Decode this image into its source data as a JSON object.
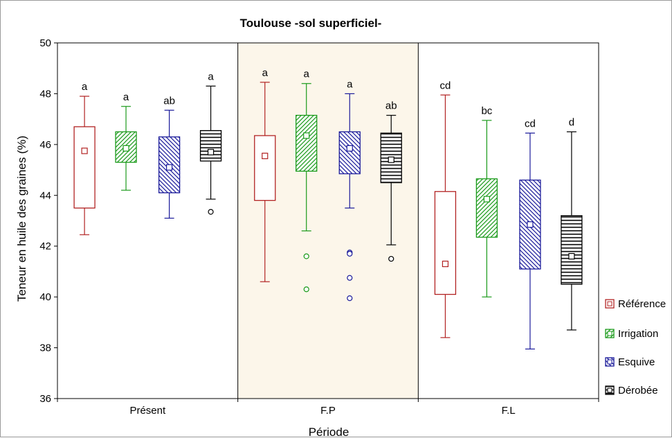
{
  "chart_data": {
    "type": "boxplot",
    "title": "Toulouse -sol superficiel-",
    "xlabel": "Période",
    "ylabel": "Teneur en huile des graines (%)",
    "ylim": [
      36,
      50
    ],
    "yticks": [
      36,
      38,
      40,
      42,
      44,
      46,
      48,
      50
    ],
    "legend_position": "right",
    "categories": [
      "Présent",
      "F.P",
      "F.L"
    ],
    "series": [
      {
        "name": "Référence",
        "color": "#b22222",
        "pattern": "none",
        "boxes": [
          {
            "mean": 45.75,
            "q1": 43.5,
            "q3": 46.7,
            "min": 42.45,
            "max": 47.9,
            "outliers": [],
            "letter": "a"
          },
          {
            "mean": 45.55,
            "q1": 43.8,
            "q3": 46.35,
            "min": 40.6,
            "max": 48.45,
            "outliers": [],
            "letter": "a"
          },
          {
            "mean": 41.3,
            "q1": 40.1,
            "q3": 44.15,
            "min": 38.4,
            "max": 47.95,
            "outliers": [],
            "letter": "cd"
          }
        ]
      },
      {
        "name": "Irrigation",
        "color": "#1a9a1a",
        "pattern": "diagonal",
        "boxes": [
          {
            "mean": 45.85,
            "q1": 45.3,
            "q3": 46.5,
            "min": 44.2,
            "max": 47.5,
            "outliers": [],
            "letter": "a"
          },
          {
            "mean": 46.35,
            "q1": 44.95,
            "q3": 47.15,
            "min": 42.6,
            "max": 48.4,
            "outliers": [
              41.6,
              40.3
            ],
            "letter": "a"
          },
          {
            "mean": 43.85,
            "q1": 42.35,
            "q3": 44.65,
            "min": 40.0,
            "max": 46.95,
            "outliers": [],
            "letter": "bc"
          }
        ]
      },
      {
        "name": "Esquive",
        "color": "#1a1a9a",
        "pattern": "backdiagonal",
        "boxes": [
          {
            "mean": 45.1,
            "q1": 44.1,
            "q3": 46.3,
            "min": 43.1,
            "max": 47.35,
            "outliers": [],
            "letter": "ab"
          },
          {
            "mean": 45.85,
            "q1": 44.85,
            "q3": 46.5,
            "min": 43.5,
            "max": 48.0,
            "outliers": [
              41.75,
              41.7,
              40.75,
              39.95
            ],
            "letter": "a"
          },
          {
            "mean": 42.85,
            "q1": 41.1,
            "q3": 44.6,
            "min": 37.95,
            "max": 46.45,
            "outliers": [],
            "letter": "cd"
          }
        ]
      },
      {
        "name": "Dérobée",
        "color": "#000000",
        "pattern": "horizontal",
        "boxes": [
          {
            "mean": 45.7,
            "q1": 45.35,
            "q3": 46.55,
            "min": 43.85,
            "max": 48.3,
            "outliers": [
              43.35
            ],
            "letter": "a"
          },
          {
            "mean": 45.4,
            "q1": 44.5,
            "q3": 46.45,
            "min": 42.05,
            "max": 47.15,
            "outliers": [
              41.5
            ],
            "letter": "ab"
          },
          {
            "mean": 41.6,
            "q1": 40.5,
            "q3": 43.2,
            "min": 38.7,
            "max": 46.5,
            "outliers": [],
            "letter": "d"
          }
        ]
      }
    ]
  }
}
